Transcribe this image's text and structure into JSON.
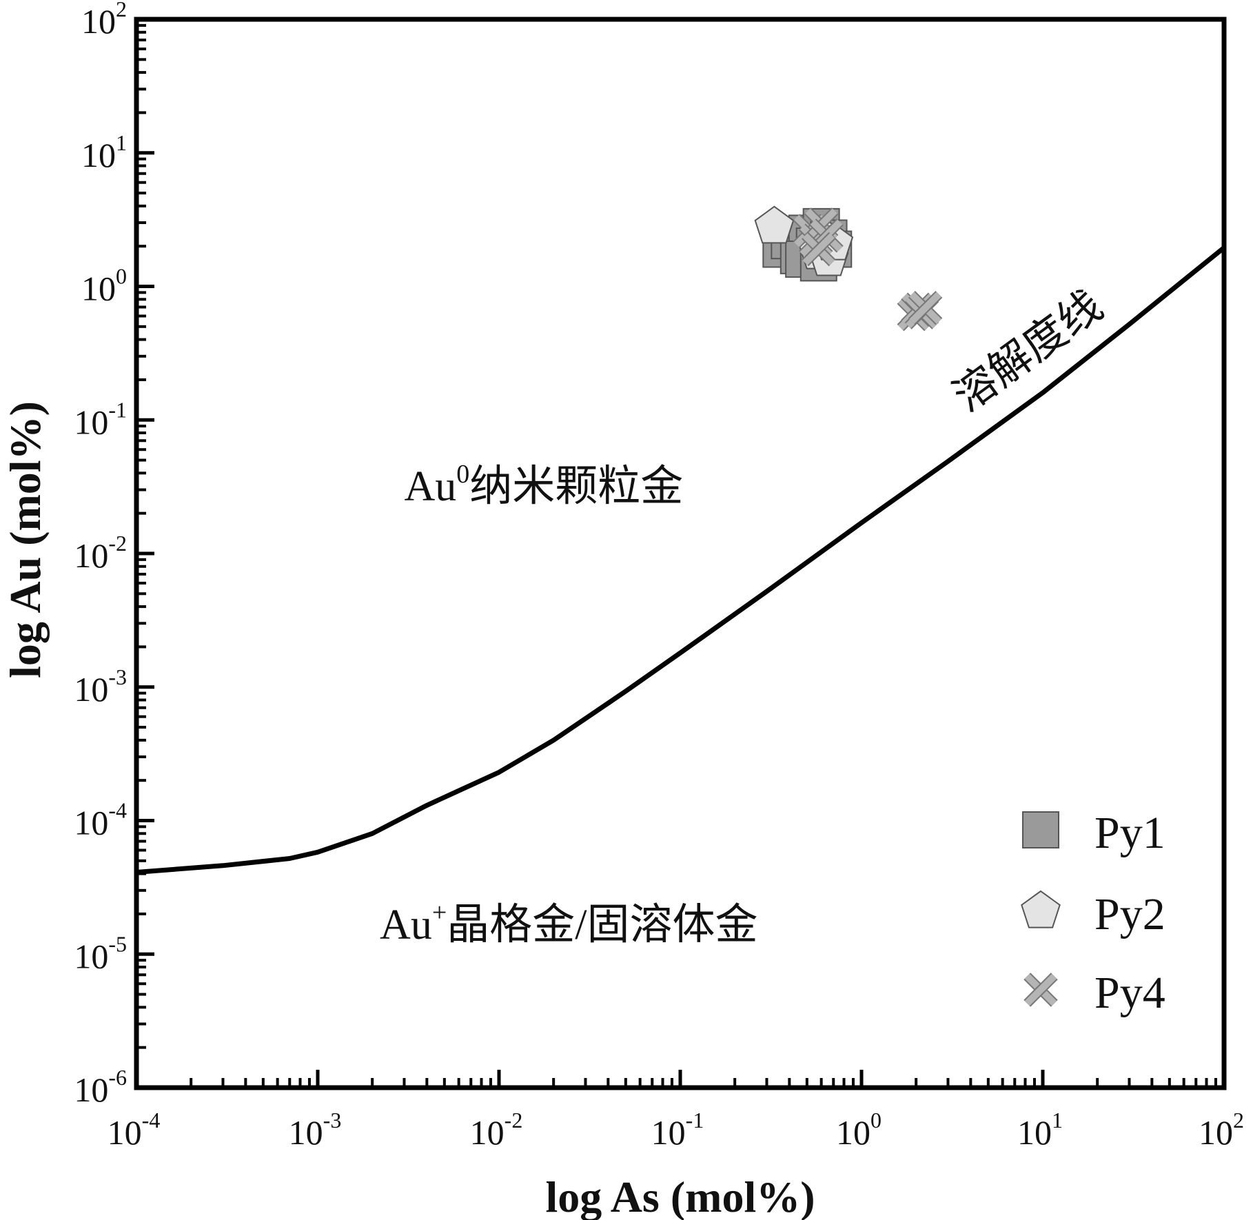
{
  "chart_data": {
    "type": "scatter",
    "xlabel": "log As (mol%)",
    "ylabel": "log Au (mol%)",
    "xscale": "log",
    "yscale": "log",
    "xlim": [
      0.0001,
      100
    ],
    "ylim": [
      1e-06,
      100
    ],
    "x_ticks": [
      {
        "base": "10",
        "exp": "-4"
      },
      {
        "base": "10",
        "exp": "-3"
      },
      {
        "base": "10",
        "exp": "-2"
      },
      {
        "base": "10",
        "exp": "-1"
      },
      {
        "base": "10",
        "exp": "0"
      },
      {
        "base": "10",
        "exp": "1"
      },
      {
        "base": "10",
        "exp": "2"
      }
    ],
    "y_ticks": [
      {
        "base": "10",
        "exp": "-6"
      },
      {
        "base": "10",
        "exp": "-5"
      },
      {
        "base": "10",
        "exp": "-4"
      },
      {
        "base": "10",
        "exp": "-3"
      },
      {
        "base": "10",
        "exp": "-2"
      },
      {
        "base": "10",
        "exp": "-1"
      },
      {
        "base": "10",
        "exp": "0"
      },
      {
        "base": "10",
        "exp": "1"
      },
      {
        "base": "10",
        "exp": "2"
      }
    ],
    "grid": false,
    "legend_position": "bottom-right",
    "colors": {
      "Py1": "#9a9a9a",
      "Py2": "#e4e4e4",
      "Py4": "#b5b5b5",
      "line": "#000000"
    },
    "curve": {
      "label": "溶解度线",
      "x": [
        0.0001,
        0.0003,
        0.0007,
        0.001,
        0.002,
        0.004,
        0.01,
        0.02,
        0.05,
        0.1,
        0.3,
        1,
        3,
        10,
        30,
        100
      ],
      "y": [
        4.1e-05,
        4.6e-05,
        5.2e-05,
        5.8e-05,
        8e-05,
        0.00013,
        0.00023,
        0.0004,
        0.00093,
        0.0018,
        0.0052,
        0.017,
        0.049,
        0.16,
        0.52,
        1.95
      ]
    },
    "regions": [
      {
        "main": "Au",
        "sup": "0",
        "rest": "纳米颗粒金",
        "x": 0.003,
        "y": 0.025
      },
      {
        "main": "Au",
        "sup": "+",
        "rest": "晶格金/固溶体金",
        "x": 0.0022,
        "y": 1.3e-05
      }
    ],
    "series": [
      {
        "name": "Py1",
        "marker": "square",
        "points": [
          {
            "x": 0.36,
            "y": 1.9
          },
          {
            "x": 0.4,
            "y": 2.2
          },
          {
            "x": 0.45,
            "y": 1.7
          },
          {
            "x": 0.5,
            "y": 2.5
          },
          {
            "x": 0.55,
            "y": 2.0
          },
          {
            "x": 0.6,
            "y": 2.8
          },
          {
            "x": 0.66,
            "y": 2.3
          },
          {
            "x": 0.48,
            "y": 1.6
          },
          {
            "x": 0.58,
            "y": 1.5
          },
          {
            "x": 0.7,
            "y": 1.9
          }
        ]
      },
      {
        "name": "Py2",
        "marker": "pentagon",
        "points": [
          {
            "x": 0.33,
            "y": 2.8
          },
          {
            "x": 0.58,
            "y": 1.8
          },
          {
            "x": 0.66,
            "y": 1.6
          },
          {
            "x": 0.62,
            "y": 2.3
          },
          {
            "x": 0.7,
            "y": 2.1
          }
        ]
      },
      {
        "name": "Py4",
        "marker": "x",
        "points": [
          {
            "x": 0.52,
            "y": 2.6
          },
          {
            "x": 0.56,
            "y": 2.2
          },
          {
            "x": 0.6,
            "y": 2.9
          },
          {
            "x": 0.64,
            "y": 2.4
          },
          {
            "x": 0.58,
            "y": 1.9
          },
          {
            "x": 1.95,
            "y": 0.62
          },
          {
            "x": 2.05,
            "y": 0.67
          },
          {
            "x": 2.15,
            "y": 0.64
          },
          {
            "x": 2.25,
            "y": 0.69
          }
        ]
      }
    ]
  }
}
